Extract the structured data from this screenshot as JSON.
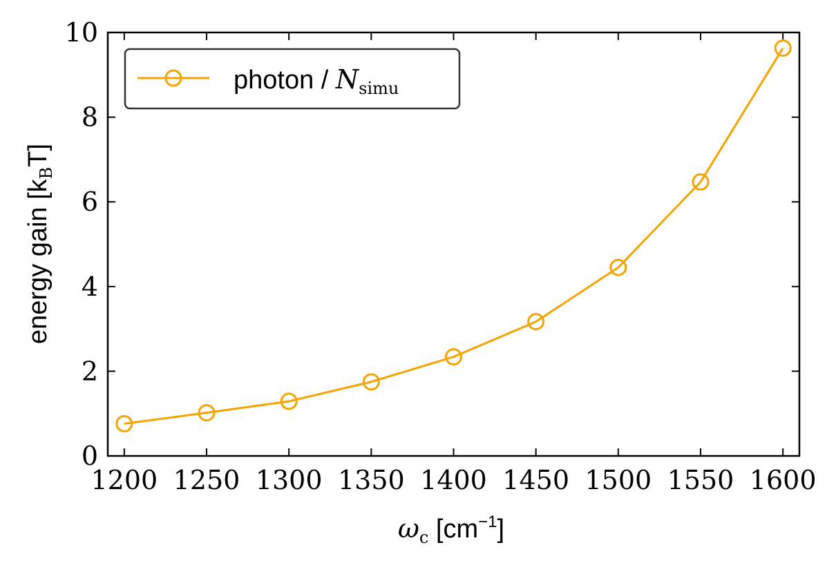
{
  "chart_data": {
    "type": "line",
    "x": [
      1200,
      1250,
      1300,
      1350,
      1400,
      1450,
      1500,
      1550,
      1600
    ],
    "series": [
      {
        "name": "photon / N_simu",
        "values": [
          0.76,
          1.02,
          1.29,
          1.75,
          2.34,
          3.17,
          4.45,
          6.47,
          9.63
        ],
        "color": "#f5a300",
        "marker": "open-circle"
      }
    ],
    "xlim": [
      1190,
      1610
    ],
    "ylim": [
      0,
      10
    ],
    "xticks": [
      1200,
      1250,
      1300,
      1350,
      1400,
      1450,
      1500,
      1550,
      1600
    ],
    "yticks": [
      0,
      2,
      4,
      6,
      8,
      10
    ],
    "xlabel": {
      "symbol": "ω",
      "sub": "c",
      "unit_open": " [cm",
      "sup": "−1",
      "unit_close": "]"
    },
    "ylabel": {
      "text": "energy gain [k",
      "sub": "B",
      "end": "T]"
    },
    "legend": {
      "position": "upper-left",
      "label_text": "photon / ",
      "label_symbol": "N",
      "label_sub": "simu"
    },
    "grid": false
  }
}
